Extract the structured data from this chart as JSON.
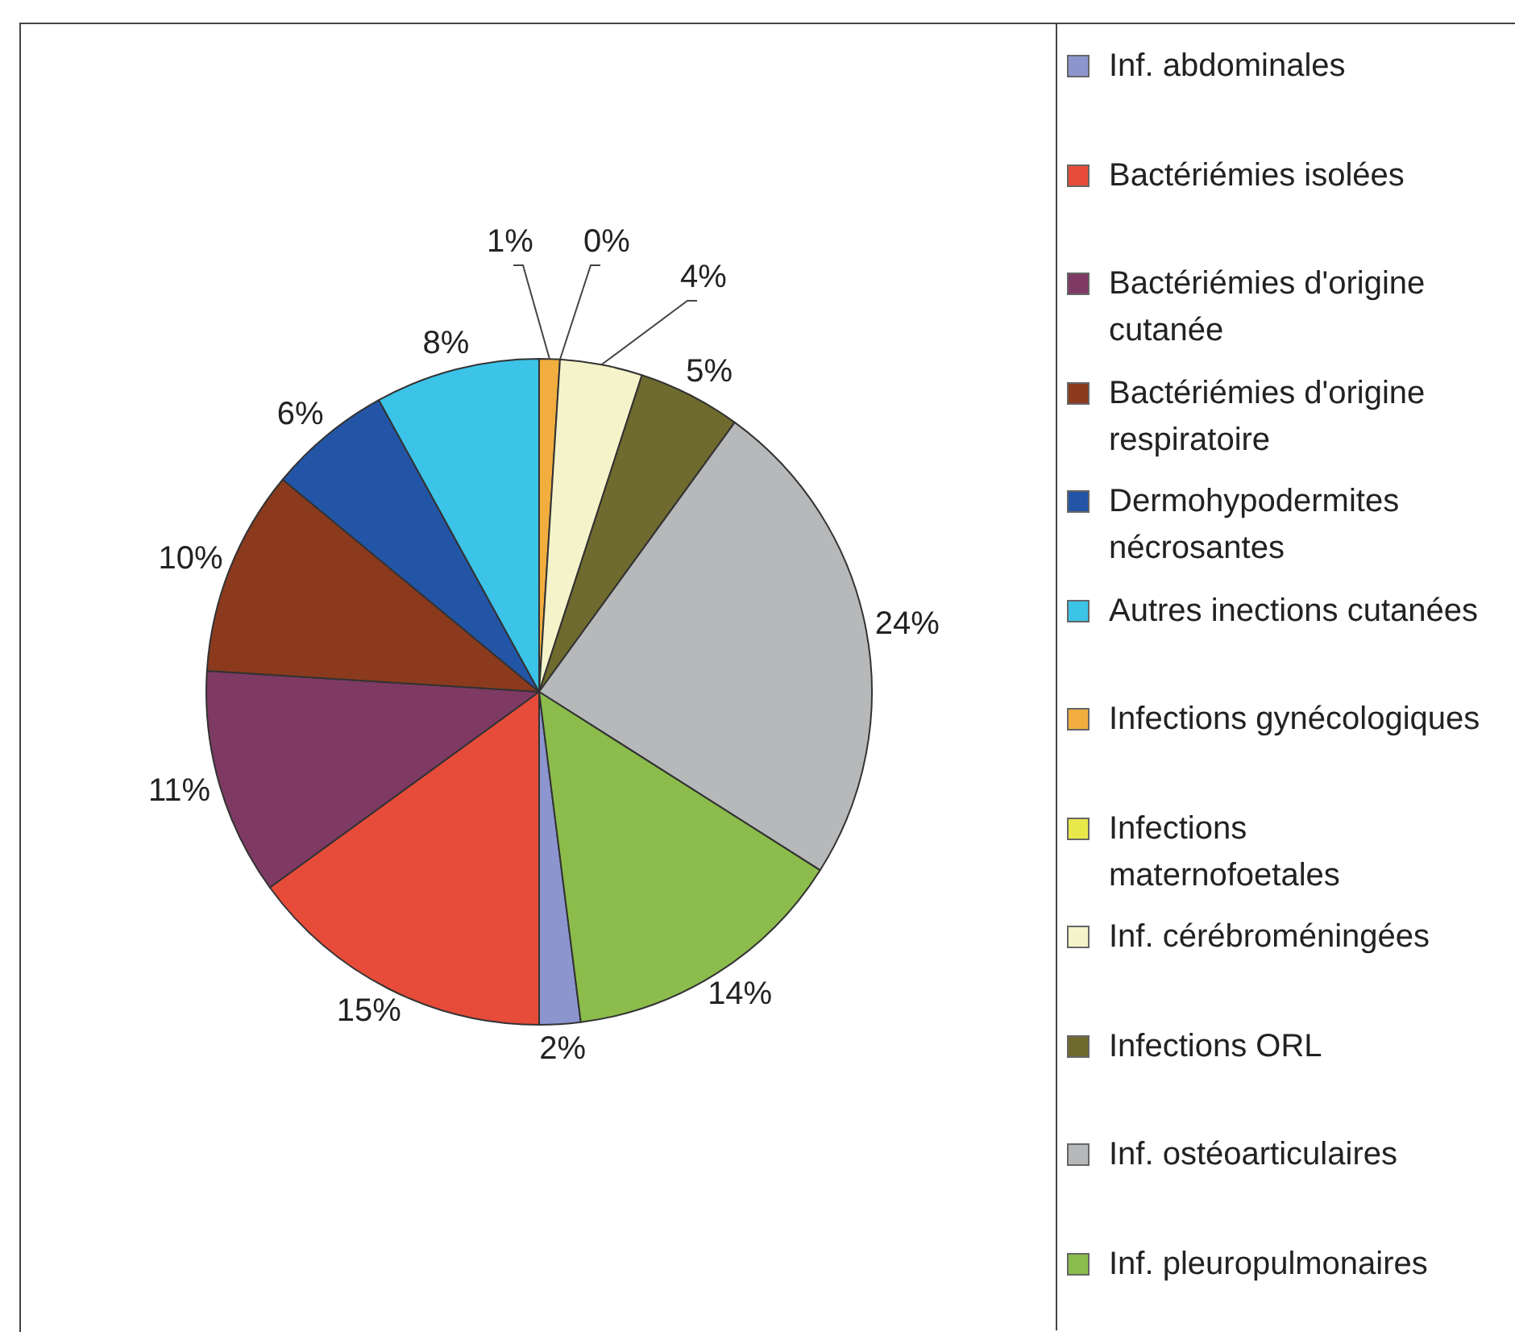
{
  "chart_data": {
    "type": "pie",
    "legend": "right",
    "categories": [
      "Inf. abdominales",
      "Bactériémies isolées",
      "Bactériémies d'origine cutanée",
      "Bactériémies d'origine respiratoire",
      "Dermohypodermites nécrosantes",
      "Autres inections cutanées",
      "Infections gynécologiques",
      "Infections maternofoetales",
      "Inf. cérébroméningées",
      "Infections ORL",
      "Inf. ostéoarticulaires",
      "Inf. pleuropulmonaires"
    ],
    "values": [
      2,
      15,
      11,
      10,
      6,
      8,
      1,
      0,
      4,
      5,
      24,
      14
    ],
    "value_labels": [
      "2%",
      "15%",
      "11%",
      "10%",
      "6%",
      "8%",
      "1%",
      "0%",
      "4%",
      "5%",
      "24%",
      "14%"
    ],
    "colors": [
      "#8d95cf",
      "#e74c3a",
      "#7e3a63",
      "#8b3a1e",
      "#2355a6",
      "#3cc3e8",
      "#f1ae3f",
      "#e8e84a",
      "#f5f3c9",
      "#6f6a2e",
      "#b7b8b9",
      "#8cbd4c"
    ]
  }
}
